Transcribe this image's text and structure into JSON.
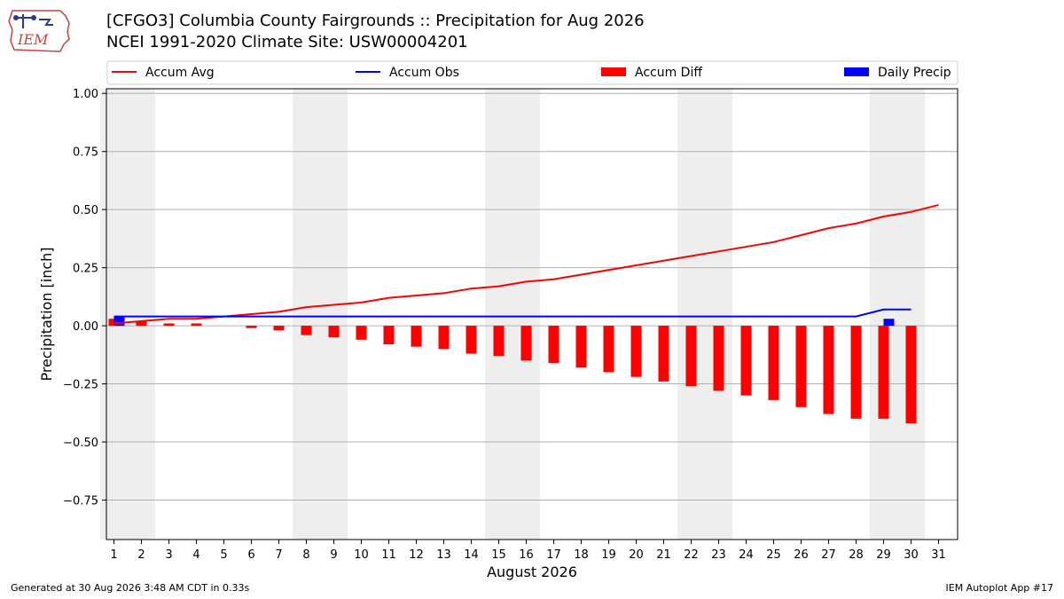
{
  "header": {
    "title_line1": "[CFGO3] Columbia County Fairgrounds :: Precipitation for Aug 2026",
    "title_line2": "NCEI 1991-2020 Climate Site: USW00004201",
    "logo_text": "IEM"
  },
  "footer": {
    "generated": "Generated at 30 Aug 2026 3:48 AM CDT in 0.33s",
    "app": "IEM Autoplot App #17"
  },
  "colors": {
    "avg": "#ff0000",
    "obs": "#0000ff",
    "diff": "#ff0000",
    "daily": "#0000ff",
    "weekend": "#eeeeee",
    "grid": "#b0b0b0"
  },
  "chart_data": {
    "type": "bar",
    "xlabel": "August 2026",
    "ylabel": "Precipitation [inch]",
    "ylim": [
      -0.92,
      1.02
    ],
    "yticks": [
      1.0,
      0.75,
      0.5,
      0.25,
      0.0,
      -0.25,
      -0.5,
      -0.75
    ],
    "ytick_labels": [
      "1.00",
      "0.75",
      "0.50",
      "0.25",
      "0.00",
      "−0.25",
      "−0.50",
      "−0.75"
    ],
    "days": [
      1,
      2,
      3,
      4,
      5,
      6,
      7,
      8,
      9,
      10,
      11,
      12,
      13,
      14,
      15,
      16,
      17,
      18,
      19,
      20,
      21,
      22,
      23,
      24,
      25,
      26,
      27,
      28,
      29,
      30,
      31
    ],
    "weekend_days": [
      1,
      2,
      8,
      9,
      15,
      16,
      22,
      23,
      29,
      30
    ],
    "grid": "horizontal",
    "legend_position": "top",
    "legend": [
      "Accum Avg",
      "Accum Obs",
      "Accum Diff",
      "Daily Precip"
    ],
    "series": [
      {
        "name": "Accum Avg",
        "kind": "line",
        "color": "#ff0000",
        "values": [
          0.01,
          0.02,
          0.03,
          0.03,
          0.04,
          0.05,
          0.06,
          0.08,
          0.09,
          0.1,
          0.12,
          0.13,
          0.14,
          0.16,
          0.17,
          0.19,
          0.2,
          0.22,
          0.24,
          0.26,
          0.28,
          0.3,
          0.32,
          0.34,
          0.36,
          0.39,
          0.42,
          0.44,
          0.47,
          0.49,
          0.52
        ]
      },
      {
        "name": "Accum Obs",
        "kind": "line",
        "color": "#0000ff",
        "values": [
          0.04,
          0.04,
          0.04,
          0.04,
          0.04,
          0.04,
          0.04,
          0.04,
          0.04,
          0.04,
          0.04,
          0.04,
          0.04,
          0.04,
          0.04,
          0.04,
          0.04,
          0.04,
          0.04,
          0.04,
          0.04,
          0.04,
          0.04,
          0.04,
          0.04,
          0.04,
          0.04,
          0.04,
          0.07,
          0.07
        ]
      },
      {
        "name": "Accum Diff",
        "kind": "bar",
        "color": "#ff0000",
        "values": [
          0.03,
          0.02,
          0.01,
          0.01,
          0.0,
          -0.01,
          -0.02,
          -0.04,
          -0.05,
          -0.06,
          -0.08,
          -0.09,
          -0.1,
          -0.12,
          -0.13,
          -0.15,
          -0.16,
          -0.18,
          -0.2,
          -0.22,
          -0.24,
          -0.26,
          -0.28,
          -0.3,
          -0.32,
          -0.35,
          -0.38,
          -0.4,
          -0.4,
          -0.42
        ]
      },
      {
        "name": "Daily Precip",
        "kind": "bar",
        "color": "#0000ff",
        "values": [
          0.04,
          0,
          0,
          0,
          0,
          0,
          0,
          0,
          0,
          0,
          0,
          0,
          0,
          0,
          0,
          0,
          0,
          0,
          0,
          0,
          0,
          0,
          0,
          0,
          0,
          0,
          0,
          0,
          0.03,
          0
        ]
      }
    ]
  }
}
